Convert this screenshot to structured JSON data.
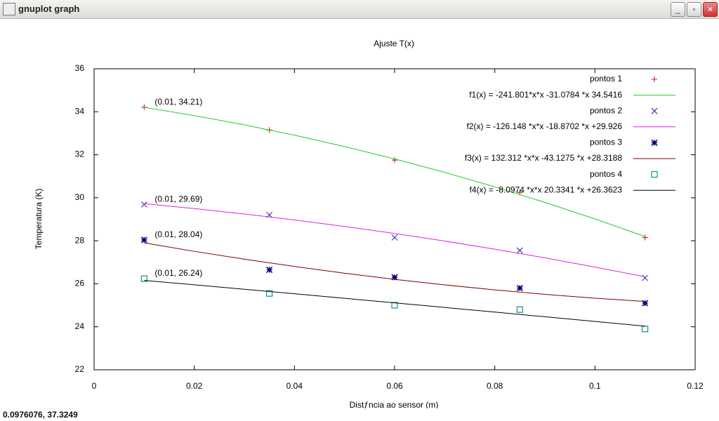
{
  "window": {
    "title": "gnuplot graph",
    "status": "0.0976076,  37.3249"
  },
  "chart_data": {
    "type": "scatter",
    "title": "Ajuste T(x)",
    "x_label": "Distƒncia ao sensor (m)",
    "y_label": "Temperatura (K)",
    "xlim": [
      0,
      0.12
    ],
    "xticks": [
      0,
      0.02,
      0.04,
      0.06,
      0.08,
      0.1,
      0.12
    ],
    "ylim": [
      22,
      36
    ],
    "yticks": [
      22,
      24,
      26,
      28,
      30,
      32,
      34,
      36
    ],
    "grid": false,
    "legend": "top-right",
    "series": [
      {
        "name": "pontos 1",
        "style": "points",
        "marker": "plus",
        "color": "#c02020",
        "x": [
          0.01,
          0.035,
          0.06,
          0.085,
          0.11
        ],
        "values": [
          34.21,
          33.15,
          31.75,
          30.25,
          28.15
        ]
      },
      {
        "name": "f1(x) = -241.801*x*x -31.0784 *x  34.5416",
        "style": "line",
        "color": "#22cc22",
        "x": [
          0.01,
          0.02,
          0.03,
          0.04,
          0.05,
          0.06,
          0.07,
          0.08,
          0.09,
          0.1,
          0.11
        ],
        "values": [
          34.207,
          33.823,
          33.392,
          32.912,
          32.383,
          31.806,
          31.181,
          30.508,
          29.786,
          29.016,
          28.197
        ]
      },
      {
        "name": "pontos 2",
        "style": "points",
        "marker": "cross",
        "color": "#3333aa",
        "x": [
          0.01,
          0.035,
          0.06,
          0.085,
          0.11
        ],
        "values": [
          29.69,
          29.2,
          28.15,
          27.55,
          26.27
        ]
      },
      {
        "name": "f2(x) = -126.148 *x*x -18.8702 *x +29.926",
        "style": "line",
        "color": "#dd22dd",
        "x": [
          0.01,
          0.02,
          0.03,
          0.04,
          0.05,
          0.06,
          0.07,
          0.08,
          0.09,
          0.1,
          0.11
        ],
        "values": [
          29.725,
          29.498,
          29.246,
          28.969,
          28.667,
          28.34,
          27.987,
          27.609,
          27.206,
          26.778,
          26.324
        ]
      },
      {
        "name": "pontos 3",
        "style": "points",
        "marker": "star",
        "color": "#000080",
        "x": [
          0.01,
          0.035,
          0.06,
          0.085,
          0.11
        ],
        "values": [
          28.04,
          26.65,
          26.3,
          25.8,
          25.1
        ]
      },
      {
        "name": "f3(x) =  132.312 *x*x -43.1275 *x +28.3188",
        "style": "line",
        "color": "#800000",
        "x": [
          0.01,
          0.02,
          0.03,
          0.04,
          0.05,
          0.06,
          0.07,
          0.08,
          0.09,
          0.1,
          0.11
        ],
        "values": [
          27.901,
          27.509,
          27.144,
          26.805,
          26.493,
          26.207,
          25.948,
          25.715,
          25.509,
          25.329,
          25.176
        ]
      },
      {
        "name": "pontos 4",
        "style": "points",
        "marker": "box",
        "color": "#008888",
        "x": [
          0.01,
          0.035,
          0.06,
          0.085,
          0.11
        ],
        "values": [
          26.24,
          25.55,
          25.0,
          24.8,
          23.9
        ]
      },
      {
        "name": "f4(x) = -8.0974 *x*x 20.3341 *x +26.3623",
        "style": "line",
        "color": "#000000",
        "x": [
          0.01,
          0.02,
          0.03,
          0.04,
          0.05,
          0.06,
          0.07,
          0.08,
          0.09,
          0.1,
          0.11
        ],
        "values": [
          26.158,
          25.952,
          25.745,
          25.536,
          25.325,
          25.113,
          24.899,
          24.684,
          24.467,
          24.248,
          24.028
        ]
      }
    ],
    "annotations": [
      {
        "text": "(0.01, 34.21)",
        "x": 0.01,
        "y": 34.21
      },
      {
        "text": "(0.01, 29.69)",
        "x": 0.01,
        "y": 29.69
      },
      {
        "text": "(0.01, 28.04)",
        "x": 0.01,
        "y": 28.04
      },
      {
        "text": "(0.01, 26.24)",
        "x": 0.01,
        "y": 26.24
      }
    ]
  }
}
